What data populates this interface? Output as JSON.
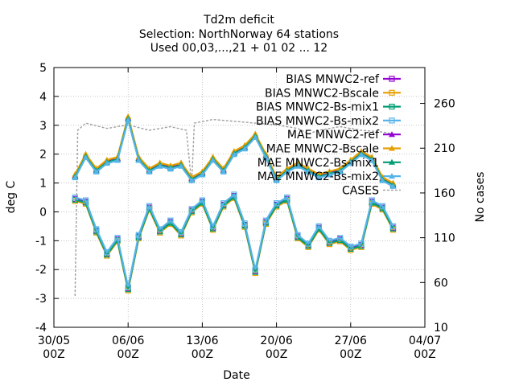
{
  "title_lines": [
    "Td2m deficit",
    "Selection: NorthNorway     64 stations",
    "Used 00,03,...,21 + 01 02 ... 12"
  ],
  "chart_data": {
    "type": "line",
    "title": "Td2m deficit",
    "xlabel": "Date",
    "ylabel": "deg C",
    "y2label": "No cases",
    "ylim": [
      -4,
      5
    ],
    "y2lim": [
      10,
      300
    ],
    "xlim": [
      "2023-05-30T00:00",
      "2023-07-04T00:00"
    ],
    "x_tick_labels": [
      {
        "date": "2023-05-30T00:00",
        "line1": "30/05",
        "line2": "00Z"
      },
      {
        "date": "2023-06-06T00:00",
        "line1": "06/06",
        "line2": "00Z"
      },
      {
        "date": "2023-06-13T00:00",
        "line1": "13/06",
        "line2": "00Z"
      },
      {
        "date": "2023-06-20T00:00",
        "line1": "20/06",
        "line2": "00Z"
      },
      {
        "date": "2023-06-27T00:00",
        "line1": "27/06",
        "line2": "00Z"
      },
      {
        "date": "2023-07-04T00:00",
        "line1": "04/07",
        "line2": "00Z"
      }
    ],
    "y_ticks": [
      "-4",
      "-3",
      "-2",
      "-1",
      "0",
      "1",
      "2",
      "3",
      "4",
      "5"
    ],
    "y2_ticks": [
      "10",
      "60",
      "110",
      "160",
      "210",
      "260"
    ],
    "grid": true,
    "legend_position": "top-right",
    "series": [
      {
        "name": "BIAS MNWC2-ref",
        "metric": "bias",
        "color": "#9400d3",
        "marker": "square-open",
        "offset": -0.05
      },
      {
        "name": "BIAS MNWC2-Bscale",
        "metric": "bias",
        "color": "#e69f00",
        "marker": "square-open",
        "offset": -0.12
      },
      {
        "name": "BIAS MNWC2-Bs-mix1",
        "metric": "bias",
        "color": "#009e73",
        "marker": "square-open",
        "offset": -0.08
      },
      {
        "name": "BIAS MNWC2-Bs-mix2",
        "metric": "bias",
        "color": "#56b4e9",
        "marker": "square-open",
        "offset": 0.0
      },
      {
        "name": "MAE MNWC2-ref",
        "metric": "mae",
        "color": "#9400d3",
        "marker": "triangle-filled",
        "offset": 0.05
      },
      {
        "name": "MAE MNWC2-Bscale",
        "metric": "mae",
        "color": "#e69f00",
        "marker": "triangle-filled",
        "offset": 0.1
      },
      {
        "name": "MAE MNWC2-Bs-mix1",
        "metric": "mae",
        "color": "#009e73",
        "marker": "triangle-filled",
        "offset": 0.02
      },
      {
        "name": "MAE MNWC2-Bs-mix2",
        "metric": "mae",
        "color": "#56b4e9",
        "marker": "triangle-filled",
        "offset": -0.02
      },
      {
        "name": "CASES",
        "metric": "cases",
        "color": "#a0a0a0",
        "marker": "none",
        "axis": "y2"
      }
    ],
    "bias_profile": [
      {
        "date": "2023-06-01T00:00",
        "y": 0.5
      },
      {
        "date": "2023-06-02T00:00",
        "y": 0.4
      },
      {
        "date": "2023-06-03T00:00",
        "y": -0.6
      },
      {
        "date": "2023-06-04T00:00",
        "y": -1.4
      },
      {
        "date": "2023-06-05T00:00",
        "y": -0.9
      },
      {
        "date": "2023-06-06T00:00",
        "y": -2.6
      },
      {
        "date": "2023-06-07T00:00",
        "y": -0.8
      },
      {
        "date": "2023-06-08T00:00",
        "y": 0.2
      },
      {
        "date": "2023-06-09T00:00",
        "y": -0.6
      },
      {
        "date": "2023-06-10T00:00",
        "y": -0.3
      },
      {
        "date": "2023-06-11T00:00",
        "y": -0.7
      },
      {
        "date": "2023-06-12T00:00",
        "y": 0.1
      },
      {
        "date": "2023-06-13T00:00",
        "y": 0.4
      },
      {
        "date": "2023-06-14T00:00",
        "y": -0.5
      },
      {
        "date": "2023-06-15T00:00",
        "y": 0.3
      },
      {
        "date": "2023-06-16T00:00",
        "y": 0.6
      },
      {
        "date": "2023-06-17T00:00",
        "y": -0.4
      },
      {
        "date": "2023-06-18T00:00",
        "y": -2.0
      },
      {
        "date": "2023-06-19T00:00",
        "y": -0.3
      },
      {
        "date": "2023-06-20T00:00",
        "y": 0.3
      },
      {
        "date": "2023-06-21T00:00",
        "y": 0.5
      },
      {
        "date": "2023-06-22T00:00",
        "y": -0.8
      },
      {
        "date": "2023-06-23T00:00",
        "y": -1.1
      },
      {
        "date": "2023-06-24T00:00",
        "y": -0.5
      },
      {
        "date": "2023-06-25T00:00",
        "y": -1.0
      },
      {
        "date": "2023-06-26T00:00",
        "y": -0.9
      },
      {
        "date": "2023-06-27T00:00",
        "y": -1.2
      },
      {
        "date": "2023-06-28T00:00",
        "y": -1.1
      },
      {
        "date": "2023-06-29T00:00",
        "y": 0.4
      },
      {
        "date": "2023-06-30T00:00",
        "y": 0.2
      },
      {
        "date": "2023-07-01T00:00",
        "y": -0.5
      }
    ],
    "mae_profile": [
      {
        "date": "2023-06-01T00:00",
        "y": 1.2
      },
      {
        "date": "2023-06-02T00:00",
        "y": 1.9
      },
      {
        "date": "2023-06-03T00:00",
        "y": 1.4
      },
      {
        "date": "2023-06-04T00:00",
        "y": 1.7
      },
      {
        "date": "2023-06-05T00:00",
        "y": 1.8
      },
      {
        "date": "2023-06-06T00:00",
        "y": 3.2
      },
      {
        "date": "2023-06-07T00:00",
        "y": 1.8
      },
      {
        "date": "2023-06-08T00:00",
        "y": 1.4
      },
      {
        "date": "2023-06-09T00:00",
        "y": 1.6
      },
      {
        "date": "2023-06-10T00:00",
        "y": 1.5
      },
      {
        "date": "2023-06-11T00:00",
        "y": 1.6
      },
      {
        "date": "2023-06-12T00:00",
        "y": 1.1
      },
      {
        "date": "2023-06-13T00:00",
        "y": 1.3
      },
      {
        "date": "2023-06-14T00:00",
        "y": 1.8
      },
      {
        "date": "2023-06-15T00:00",
        "y": 1.4
      },
      {
        "date": "2023-06-16T00:00",
        "y": 2.0
      },
      {
        "date": "2023-06-17T00:00",
        "y": 2.2
      },
      {
        "date": "2023-06-18T00:00",
        "y": 2.6
      },
      {
        "date": "2023-06-19T00:00",
        "y": 1.9
      },
      {
        "date": "2023-06-20T00:00",
        "y": 1.1
      },
      {
        "date": "2023-06-21T00:00",
        "y": 1.4
      },
      {
        "date": "2023-06-22T00:00",
        "y": 1.6
      },
      {
        "date": "2023-06-23T00:00",
        "y": 1.4
      },
      {
        "date": "2023-06-24T00:00",
        "y": 1.2
      },
      {
        "date": "2023-06-25T00:00",
        "y": 1.3
      },
      {
        "date": "2023-06-26T00:00",
        "y": 1.4
      },
      {
        "date": "2023-06-27T00:00",
        "y": 1.7
      },
      {
        "date": "2023-06-28T00:00",
        "y": 2.0
      },
      {
        "date": "2023-06-29T00:00",
        "y": 1.8
      },
      {
        "date": "2023-06-30T00:00",
        "y": 1.1
      },
      {
        "date": "2023-07-01T00:00",
        "y": 0.9
      }
    ],
    "cases_profile": [
      {
        "date": "2023-06-01T00:00",
        "y": 45
      },
      {
        "date": "2023-06-01T06:00",
        "y": 230
      },
      {
        "date": "2023-06-02T00:00",
        "y": 238
      },
      {
        "date": "2023-06-04T00:00",
        "y": 232
      },
      {
        "date": "2023-06-06T00:00",
        "y": 236
      },
      {
        "date": "2023-06-08T00:00",
        "y": 230
      },
      {
        "date": "2023-06-10T00:00",
        "y": 234
      },
      {
        "date": "2023-06-11T12:00",
        "y": 230
      },
      {
        "date": "2023-06-12T00:00",
        "y": 170
      },
      {
        "date": "2023-06-12T06:00",
        "y": 238
      },
      {
        "date": "2023-06-14T00:00",
        "y": 242
      },
      {
        "date": "2023-06-16T00:00",
        "y": 240
      },
      {
        "date": "2023-06-18T00:00",
        "y": 238
      },
      {
        "date": "2023-06-20T00:00",
        "y": 236
      },
      {
        "date": "2023-06-22T00:00",
        "y": 232
      },
      {
        "date": "2023-06-23T00:00",
        "y": 226
      },
      {
        "date": "2023-06-24T00:00",
        "y": 230
      },
      {
        "date": "2023-06-26T00:00",
        "y": 234
      },
      {
        "date": "2023-06-28T00:00",
        "y": 230
      },
      {
        "date": "2023-06-30T00:00",
        "y": 228
      },
      {
        "date": "2023-07-01T00:00",
        "y": 226
      }
    ]
  }
}
